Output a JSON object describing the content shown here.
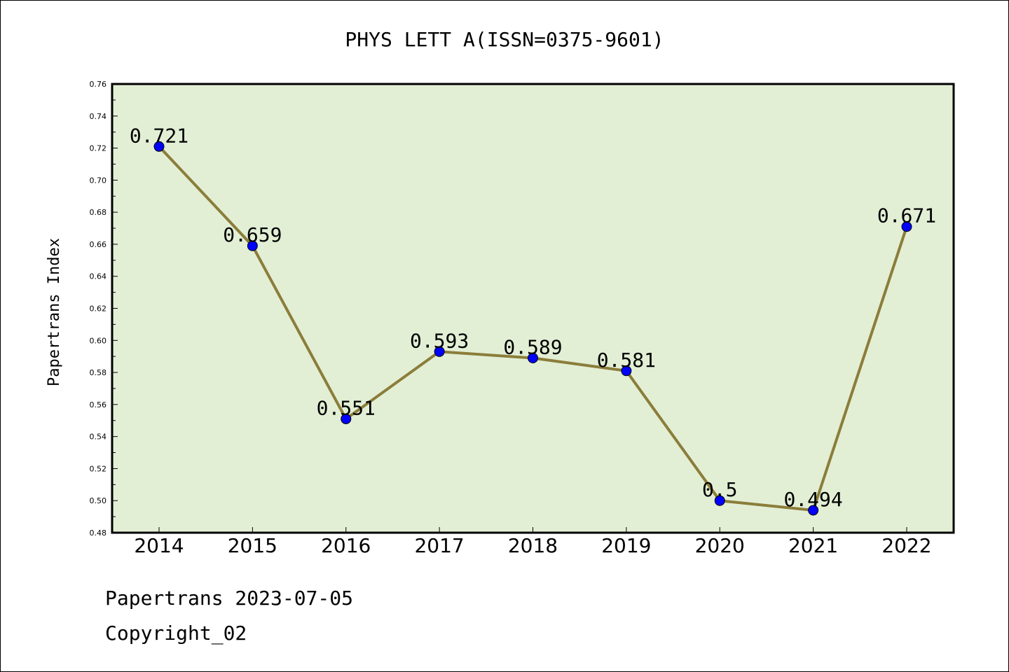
{
  "chart_data": {
    "type": "line",
    "title": "PHYS LETT A(ISSN=0375-9601)",
    "ylabel": "Papertrans Index",
    "xlabel": "",
    "categories": [
      "2014",
      "2015",
      "2016",
      "2017",
      "2018",
      "2019",
      "2020",
      "2021",
      "2022"
    ],
    "values": [
      0.721,
      0.659,
      0.551,
      0.593,
      0.589,
      0.581,
      0.5,
      0.494,
      0.671
    ],
    "data_labels": [
      "0.721",
      "0.659",
      "0.551",
      "0.593",
      "0.589",
      "0.581",
      "0.5",
      "0.494",
      "0.671"
    ],
    "ylim": [
      0.48,
      0.76
    ],
    "yticks": [
      "0.48",
      "0.50",
      "0.52",
      "0.54",
      "0.56",
      "0.58",
      "0.60",
      "0.62",
      "0.64",
      "0.66",
      "0.68",
      "0.70",
      "0.72",
      "0.74",
      "0.76"
    ],
    "grid": false,
    "colors": {
      "plot_background": "#e2efd5",
      "line": "#8b7d3a",
      "marker": "#0000ff"
    }
  },
  "footer": {
    "line1": "Papertrans 2023-07-05",
    "line2": "Copyright_02"
  }
}
